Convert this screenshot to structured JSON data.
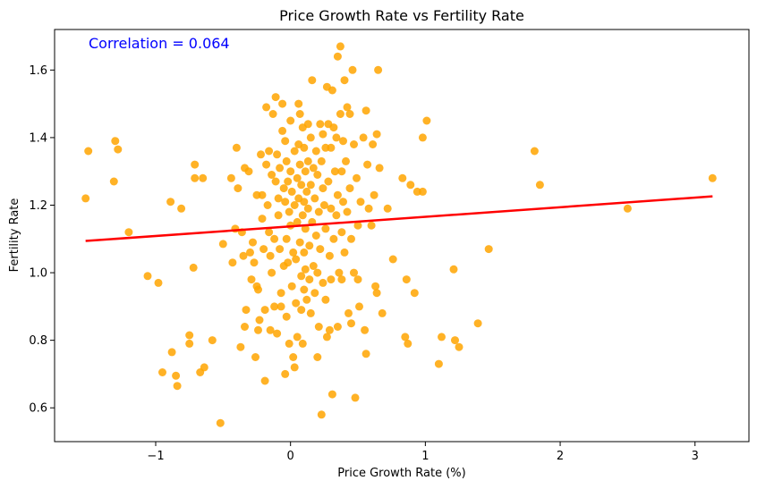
{
  "chart_data": {
    "type": "scatter",
    "title": "Price Growth Rate vs Fertility Rate",
    "xlabel": "Price Growth Rate (%)",
    "ylabel": "Fertility Rate",
    "xlim": [
      -1.75,
      3.4
    ],
    "ylim": [
      0.5,
      1.72
    ],
    "xticks": [
      -1,
      0,
      1,
      2,
      3
    ],
    "xtick_labels": [
      "−1",
      "0",
      "1",
      "2",
      "3"
    ],
    "yticks": [
      0.6,
      0.8,
      1.0,
      1.2,
      1.4,
      1.6
    ],
    "ytick_labels": [
      "0.6",
      "0.8",
      "1.0",
      "1.2",
      "1.4",
      "1.6"
    ],
    "grid": false,
    "annotation": {
      "text": "Correlation = 0.064",
      "color": "#0000ff"
    },
    "point_color": "#ffa500",
    "line_color": "#ff0000",
    "regression_line": {
      "x": [
        -1.52,
        3.13
      ],
      "y": [
        1.094,
        1.226
      ]
    },
    "points": [
      [
        -1.52,
        1.22
      ],
      [
        -1.5,
        1.36
      ],
      [
        -1.3,
        1.39
      ],
      [
        -1.28,
        1.365
      ],
      [
        -1.31,
        1.27
      ],
      [
        -1.2,
        1.12
      ],
      [
        -1.06,
        0.99
      ],
      [
        -0.98,
        0.97
      ],
      [
        -0.95,
        0.705
      ],
      [
        -0.89,
        1.21
      ],
      [
        -0.88,
        0.765
      ],
      [
        -0.85,
        0.695
      ],
      [
        -0.84,
        0.665
      ],
      [
        -0.81,
        1.19
      ],
      [
        -0.75,
        0.815
      ],
      [
        -0.75,
        0.79
      ],
      [
        -0.71,
        1.32
      ],
      [
        -0.71,
        1.28
      ],
      [
        -0.72,
        1.015
      ],
      [
        -0.67,
        0.705
      ],
      [
        -0.65,
        1.28
      ],
      [
        -0.64,
        0.72
      ],
      [
        -0.58,
        0.8
      ],
      [
        -0.52,
        0.555
      ],
      [
        -0.5,
        1.085
      ],
      [
        -0.44,
        1.28
      ],
      [
        -0.43,
        1.03
      ],
      [
        -0.41,
        1.13
      ],
      [
        -0.4,
        1.37
      ],
      [
        -0.39,
        1.25
      ],
      [
        -0.37,
        0.78
      ],
      [
        -0.36,
        1.12
      ],
      [
        -0.35,
        1.05
      ],
      [
        -0.34,
        0.84
      ],
      [
        -0.34,
        1.31
      ],
      [
        -0.33,
        0.89
      ],
      [
        -0.31,
        1.3
      ],
      [
        -0.3,
        1.06
      ],
      [
        -0.29,
        0.98
      ],
      [
        -0.28,
        1.09
      ],
      [
        -0.27,
        1.03
      ],
      [
        -0.26,
        0.75
      ],
      [
        -0.25,
        1.23
      ],
      [
        -0.25,
        0.96
      ],
      [
        -0.24,
        0.95
      ],
      [
        -0.24,
        0.83
      ],
      [
        -0.23,
        0.86
      ],
      [
        -0.22,
        1.35
      ],
      [
        -0.21,
        1.23
      ],
      [
        -0.21,
        1.16
      ],
      [
        -0.2,
        1.07
      ],
      [
        -0.19,
        0.89
      ],
      [
        -0.19,
        0.68
      ],
      [
        -0.18,
        1.49
      ],
      [
        -0.18,
        1.32
      ],
      [
        -0.17,
        1.2
      ],
      [
        -0.16,
        1.36
      ],
      [
        -0.16,
        1.12
      ],
      [
        -0.15,
        1.05
      ],
      [
        -0.15,
        0.83
      ],
      [
        -0.14,
        1.29
      ],
      [
        -0.14,
        1.0
      ],
      [
        -0.13,
        1.47
      ],
      [
        -0.12,
        1.1
      ],
      [
        -0.12,
        0.9
      ],
      [
        -0.11,
        1.52
      ],
      [
        -0.11,
        1.27
      ],
      [
        -0.1,
        1.35
      ],
      [
        -0.1,
        0.82
      ],
      [
        -0.09,
        1.22
      ],
      [
        -0.09,
        1.17
      ],
      [
        -0.08,
        1.31
      ],
      [
        -0.08,
        1.07
      ],
      [
        -0.07,
        0.94
      ],
      [
        -0.07,
        0.9
      ],
      [
        -0.06,
        1.5
      ],
      [
        -0.06,
        1.42
      ],
      [
        -0.05,
        1.25
      ],
      [
        -0.05,
        1.02
      ],
      [
        -0.04,
        1.39
      ],
      [
        -0.04,
        1.21
      ],
      [
        -0.04,
        0.7
      ],
      [
        -0.03,
        1.33
      ],
      [
        -0.03,
        1.1
      ],
      [
        -0.03,
        0.87
      ],
      [
        -0.02,
        1.27
      ],
      [
        -0.02,
        1.03
      ],
      [
        -0.01,
        1.18
      ],
      [
        -0.01,
        0.79
      ],
      [
        0,
        1.45
      ],
      [
        0,
        1.3
      ],
      [
        0,
        1.14
      ],
      [
        0.01,
        1.24
      ],
      [
        0.01,
        0.96
      ],
      [
        0.02,
        1.06
      ],
      [
        0.02,
        0.75
      ],
      [
        0.03,
        1.36
      ],
      [
        0.03,
        1.2
      ],
      [
        0.03,
        0.72
      ],
      [
        0.04,
        1.04
      ],
      [
        0.04,
        0.91
      ],
      [
        0.05,
        1.28
      ],
      [
        0.05,
        1.15
      ],
      [
        0.05,
        0.81
      ],
      [
        0.06,
        1.5
      ],
      [
        0.06,
        1.38
      ],
      [
        0.06,
        1.22
      ],
      [
        0.07,
        1.47
      ],
      [
        0.07,
        1.32
      ],
      [
        0.07,
        1.09
      ],
      [
        0.08,
        1.26
      ],
      [
        0.08,
        0.99
      ],
      [
        0.08,
        0.89
      ],
      [
        0.09,
        1.43
      ],
      [
        0.09,
        1.17
      ],
      [
        0.09,
        0.79
      ],
      [
        0.1,
        1.37
      ],
      [
        0.1,
        1.21
      ],
      [
        0.1,
        1.06
      ],
      [
        0.1,
        0.95
      ],
      [
        0.11,
        1.3
      ],
      [
        0.11,
        1.13
      ],
      [
        0.11,
        1.01
      ],
      [
        0.12,
        1.24
      ],
      [
        0.12,
        0.92
      ],
      [
        0.13,
        1.44
      ],
      [
        0.13,
        1.33
      ],
      [
        0.13,
        1.19
      ],
      [
        0.14,
        1.08
      ],
      [
        0.14,
        0.98
      ],
      [
        0.15,
        1.4
      ],
      [
        0.15,
        1.26
      ],
      [
        0.15,
        0.88
      ],
      [
        0.16,
        1.57
      ],
      [
        0.16,
        1.15
      ],
      [
        0.17,
        1.31
      ],
      [
        0.17,
        1.02
      ],
      [
        0.18,
        1.22
      ],
      [
        0.18,
        0.94
      ],
      [
        0.19,
        1.36
      ],
      [
        0.19,
        1.11
      ],
      [
        0.2,
        1.29
      ],
      [
        0.2,
        1.0
      ],
      [
        0.2,
        0.75
      ],
      [
        0.21,
        1.18
      ],
      [
        0.21,
        0.84
      ],
      [
        0.22,
        1.44
      ],
      [
        0.22,
        1.07
      ],
      [
        0.23,
        1.33
      ],
      [
        0.23,
        0.58
      ],
      [
        0.24,
        1.41
      ],
      [
        0.24,
        1.25
      ],
      [
        0.24,
        0.97
      ],
      [
        0.25,
        1.2
      ],
      [
        0.26,
        1.37
      ],
      [
        0.26,
        1.13
      ],
      [
        0.26,
        0.92
      ],
      [
        0.27,
        1.55
      ],
      [
        0.27,
        0.81
      ],
      [
        0.28,
        1.44
      ],
      [
        0.28,
        1.27
      ],
      [
        0.29,
        1.05
      ],
      [
        0.29,
        0.83
      ],
      [
        0.3,
        1.37
      ],
      [
        0.3,
        1.19
      ],
      [
        0.3,
        0.98
      ],
      [
        0.31,
        1.54
      ],
      [
        0.31,
        0.64
      ],
      [
        0.32,
        1.43
      ],
      [
        0.32,
        1.1
      ],
      [
        0.33,
        1.3
      ],
      [
        0.34,
        1.4
      ],
      [
        0.34,
        1.17
      ],
      [
        0.35,
        1.64
      ],
      [
        0.35,
        1.23
      ],
      [
        0.35,
        0.84
      ],
      [
        0.36,
        1.0
      ],
      [
        0.37,
        1.67
      ],
      [
        0.37,
        1.47
      ],
      [
        0.38,
        1.3
      ],
      [
        0.38,
        1.12
      ],
      [
        0.38,
        0.98
      ],
      [
        0.39,
        1.39
      ],
      [
        0.39,
        1.21
      ],
      [
        0.4,
        1.57
      ],
      [
        0.4,
        1.06
      ],
      [
        0.41,
        1.33
      ],
      [
        0.42,
        1.49
      ],
      [
        0.42,
        1.18
      ],
      [
        0.43,
        0.88
      ],
      [
        0.44,
        1.47
      ],
      [
        0.44,
        1.25
      ],
      [
        0.45,
        1.1
      ],
      [
        0.45,
        0.85
      ],
      [
        0.46,
        1.6
      ],
      [
        0.47,
        1.38
      ],
      [
        0.47,
        1.0
      ],
      [
        0.48,
        0.63
      ],
      [
        0.49,
        1.28
      ],
      [
        0.5,
        1.14
      ],
      [
        0.5,
        0.98
      ],
      [
        0.51,
        0.9
      ],
      [
        0.52,
        1.21
      ],
      [
        0.54,
        1.4
      ],
      [
        0.55,
        0.83
      ],
      [
        0.56,
        1.48
      ],
      [
        0.56,
        0.76
      ],
      [
        0.57,
        1.32
      ],
      [
        0.58,
        1.19
      ],
      [
        0.6,
        1.14
      ],
      [
        0.61,
        1.38
      ],
      [
        0.62,
        1.23
      ],
      [
        0.63,
        0.96
      ],
      [
        0.64,
        0.94
      ],
      [
        0.64,
        1.41
      ],
      [
        0.65,
        1.6
      ],
      [
        0.66,
        1.31
      ],
      [
        0.68,
        0.88
      ],
      [
        0.72,
        1.19
      ],
      [
        0.76,
        1.04
      ],
      [
        0.83,
        1.28
      ],
      [
        0.85,
        0.81
      ],
      [
        0.86,
        0.98
      ],
      [
        0.87,
        0.79
      ],
      [
        0.89,
        1.26
      ],
      [
        0.92,
        0.94
      ],
      [
        0.94,
        1.24
      ],
      [
        0.98,
        1.24
      ],
      [
        0.98,
        1.4
      ],
      [
        1.01,
        1.45
      ],
      [
        1.1,
        0.73
      ],
      [
        1.12,
        0.81
      ],
      [
        1.21,
        1.01
      ],
      [
        1.22,
        0.8
      ],
      [
        1.25,
        0.78
      ],
      [
        1.39,
        0.85
      ],
      [
        1.47,
        1.07
      ],
      [
        1.81,
        1.36
      ],
      [
        1.85,
        1.26
      ],
      [
        2.5,
        1.19
      ],
      [
        3.13,
        1.28
      ]
    ]
  }
}
